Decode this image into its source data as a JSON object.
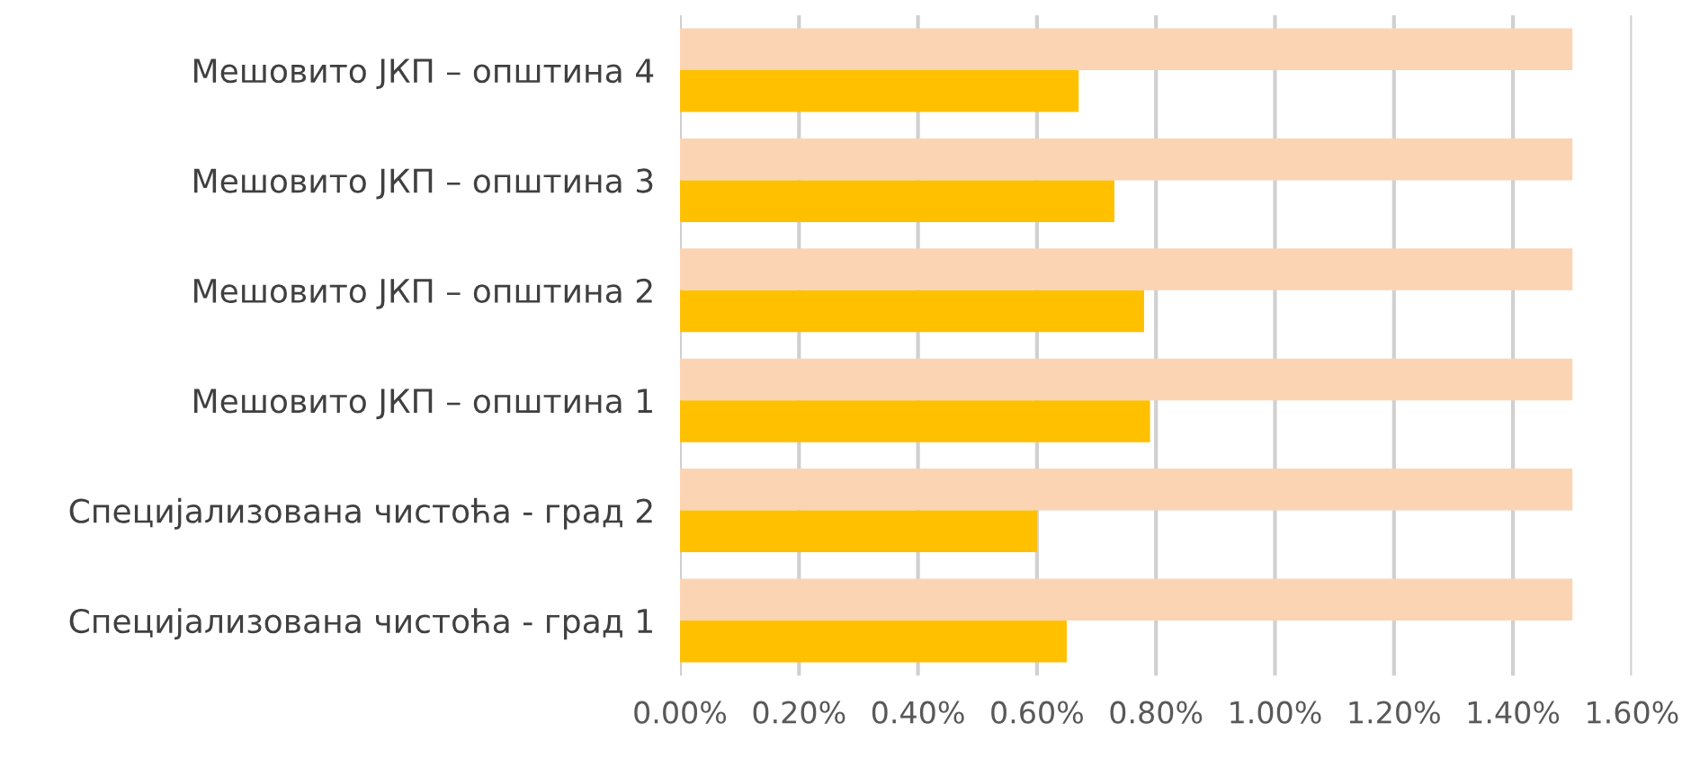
{
  "chart_data": {
    "type": "bar",
    "orientation": "horizontal",
    "categories": [
      "Мешовито ЈКП – општина 4",
      "Мешовито ЈКП – општина 3",
      "Мешовито ЈКП – општина 2",
      "Мешовито ЈКП – општина 1",
      "Специјализована чистоћа - град 2",
      "Специјализована чистоћа - град 1"
    ],
    "series": [
      {
        "color": "#fbd4b4",
        "values": [
          1.5,
          1.5,
          1.5,
          1.5,
          1.5,
          1.5
        ]
      },
      {
        "color": "#ffc000",
        "values": [
          0.67,
          0.73,
          0.78,
          0.79,
          0.6,
          0.65
        ]
      }
    ],
    "xlim": [
      0,
      1.6
    ],
    "xticks": [
      {
        "value": 0,
        "label": "0.00%"
      },
      {
        "value": 0.2,
        "label": "0.20%"
      },
      {
        "value": 0.4,
        "label": "0.40%"
      },
      {
        "value": 0.6,
        "label": "0.60%"
      },
      {
        "value": 0.8,
        "label": "0.80%"
      },
      {
        "value": 1.0,
        "label": "1.00%"
      },
      {
        "value": 1.2,
        "label": "1.20%"
      },
      {
        "value": 1.4,
        "label": "1.40%"
      },
      {
        "value": 1.6,
        "label": "1.60%"
      }
    ],
    "grid": "x",
    "legend": false
  }
}
